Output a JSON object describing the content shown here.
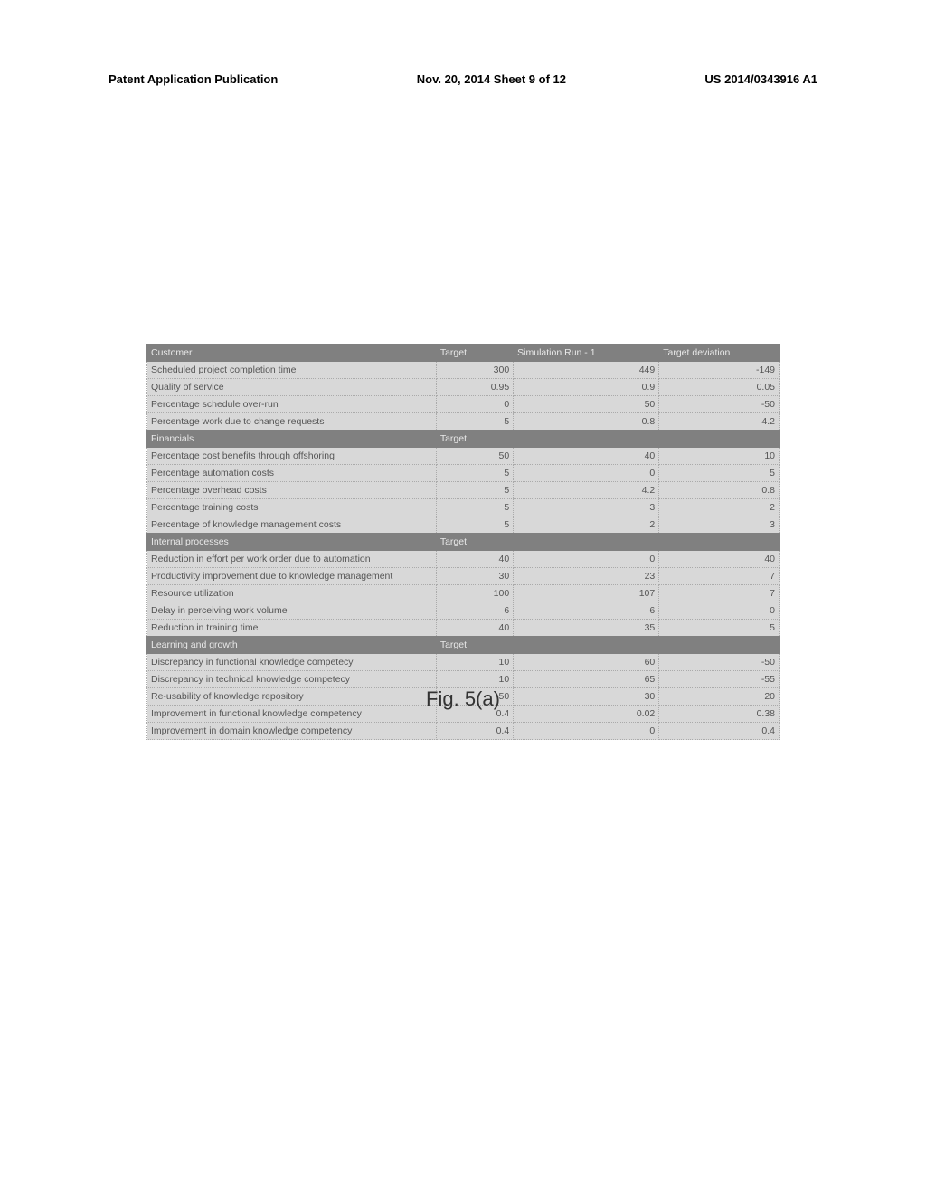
{
  "header": {
    "left": "Patent Application Publication",
    "center": "Nov. 20, 2014  Sheet 9 of 12",
    "right": "US 2014/0343916 A1"
  },
  "figure_label": "Fig. 5(a)",
  "columns": {
    "label": "",
    "target": "Target",
    "sim": "Simulation Run - 1",
    "dev": "Target deviation"
  },
  "sections": [
    {
      "title": "Customer",
      "show_headers": true,
      "rows": [
        {
          "label": "Scheduled project completion time",
          "target": "300",
          "sim": "449",
          "dev": "-149"
        },
        {
          "label": "Quality of service",
          "target": "0.95",
          "sim": "0.9",
          "dev": "0.05"
        },
        {
          "label": "Percentage schedule over-run",
          "target": "0",
          "sim": "50",
          "dev": "-50"
        },
        {
          "label": "Percentage work due to change requests",
          "target": "5",
          "sim": "0.8",
          "dev": "4.2"
        }
      ]
    },
    {
      "title": "Financials",
      "show_headers": false,
      "rows": [
        {
          "label": "Percentage cost benefits through offshoring",
          "target": "50",
          "sim": "40",
          "dev": "10"
        },
        {
          "label": "Percentage automation costs",
          "target": "5",
          "sim": "0",
          "dev": "5"
        },
        {
          "label": "Percentage overhead costs",
          "target": "5",
          "sim": "4.2",
          "dev": "0.8"
        },
        {
          "label": "Percentage training costs",
          "target": "5",
          "sim": "3",
          "dev": "2"
        },
        {
          "label": "Percentage of knowledge management costs",
          "target": "5",
          "sim": "2",
          "dev": "3"
        }
      ]
    },
    {
      "title": "Internal processes",
      "show_headers": false,
      "rows": [
        {
          "label": "Reduction in effort per work order due to automation",
          "target": "40",
          "sim": "0",
          "dev": "40"
        },
        {
          "label": "Productivity improvement due to knowledge management",
          "target": "30",
          "sim": "23",
          "dev": "7"
        },
        {
          "label": "Resource utilization",
          "target": "100",
          "sim": "107",
          "dev": "7"
        },
        {
          "label": "Delay in perceiving work volume",
          "target": "6",
          "sim": "6",
          "dev": "0"
        },
        {
          "label": "Reduction in training time",
          "target": "40",
          "sim": "35",
          "dev": "5"
        }
      ]
    },
    {
      "title": "Learning and growth",
      "show_headers": false,
      "rows": [
        {
          "label": "Discrepancy in functional knowledge competecy",
          "target": "10",
          "sim": "60",
          "dev": "-50"
        },
        {
          "label": "Discrepancy in technical knowledge competecy",
          "target": "10",
          "sim": "65",
          "dev": "-55"
        },
        {
          "label": "Re-usability of knowledge repository",
          "target": "50",
          "sim": "30",
          "dev": "20"
        },
        {
          "label": "Improvement in functional knowledge competency",
          "target": "0.4",
          "sim": "0.02",
          "dev": "0.38"
        },
        {
          "label": "Improvement in domain knowledge competency",
          "target": "0.4",
          "sim": "0",
          "dev": "0.4"
        }
      ]
    }
  ]
}
